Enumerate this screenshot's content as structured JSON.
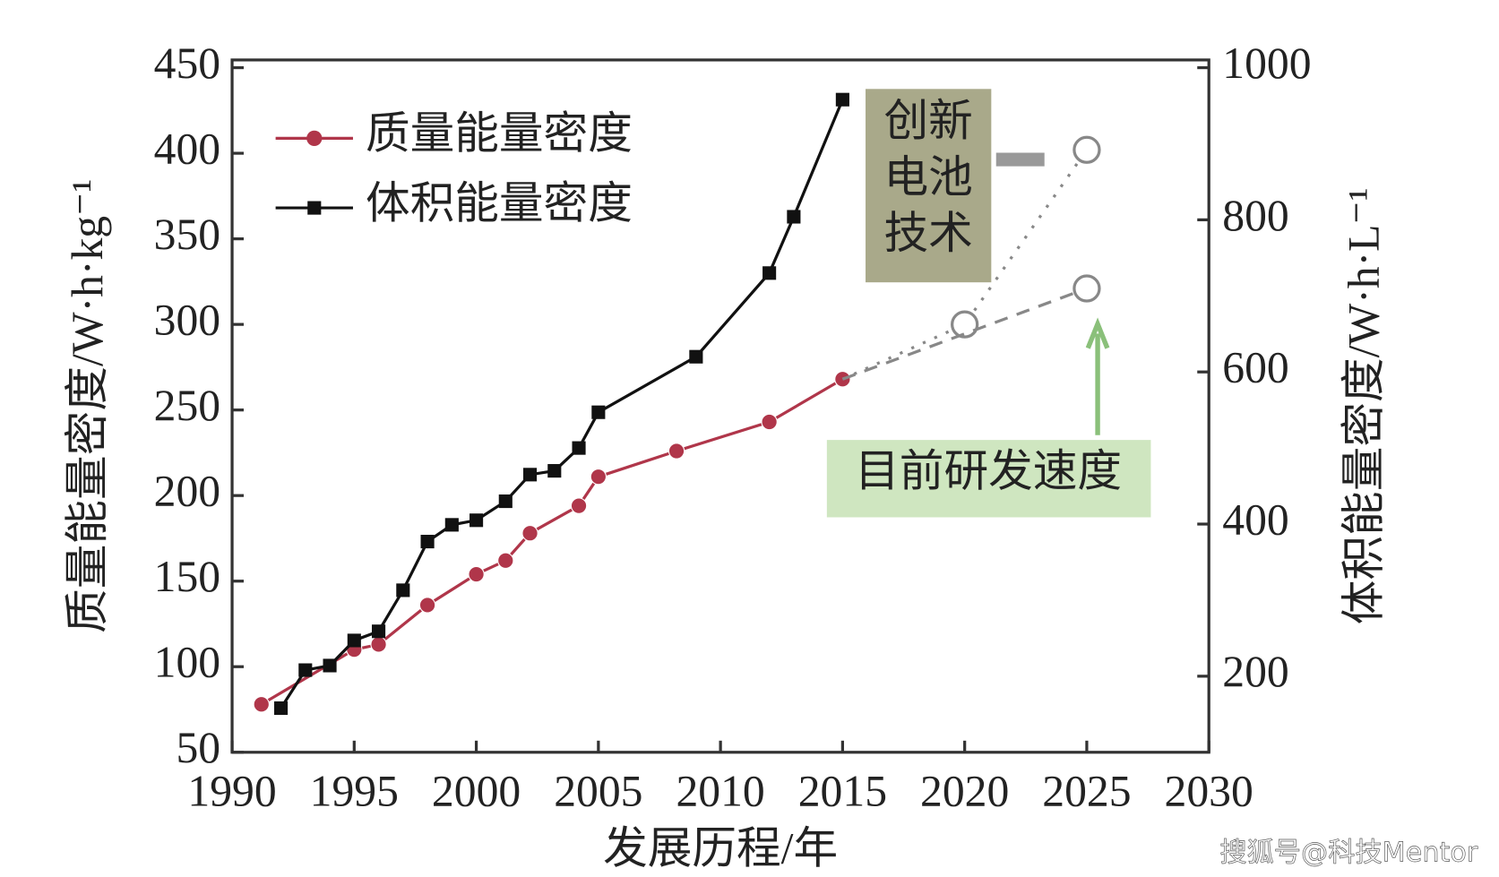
{
  "chart_data": {
    "type": "line",
    "x_label": "发展历程/年",
    "y_label": "质量能量密度/W·h·kg⁻¹",
    "y2_label": "体积能量密度/W·h·L⁻¹",
    "xlim": [
      1990,
      2030
    ],
    "xticks": [
      1990,
      1995,
      2000,
      2005,
      2010,
      2015,
      2020,
      2025,
      2030
    ],
    "ylim": [
      50,
      450
    ],
    "yticks": [
      50,
      100,
      150,
      200,
      250,
      300,
      350,
      400,
      450
    ],
    "y2lim": [
      100,
      1000
    ],
    "y2ticks": [
      200,
      400,
      600,
      800,
      1000
    ],
    "legend": "upper left",
    "series": [
      {
        "name": "质量能量密度",
        "color": "#b0364a",
        "marker": "circle",
        "x": [
          1991.2,
          1995,
          1996,
          1998,
          2000,
          2001.2,
          2002.2,
          2004.2,
          2005,
          2008.2,
          2012,
          2015
        ],
        "values": [
          78,
          110,
          113,
          136,
          154,
          162,
          178,
          194,
          211,
          226,
          243,
          268
        ]
      },
      {
        "name": "体积能量密度",
        "color": "#111111",
        "marker": "square",
        "axis": "y2",
        "x": [
          1992,
          1993,
          1994,
          1995,
          1996,
          1997,
          1998,
          1999,
          2000,
          2001.2,
          2002.2,
          2003.2,
          2004.2,
          2005,
          2009,
          2012,
          2013,
          2015
        ],
        "values": [
          158,
          208,
          214,
          247,
          259,
          313,
          377,
          399,
          405,
          430,
          465,
          470,
          500,
          547,
          620,
          730,
          804,
          958
        ]
      },
      {
        "color": "#888888",
        "marker": "open-circle",
        "dash": "dotted",
        "x": [
          2015,
          2020,
          2025
        ],
        "values": [
          268,
          300,
          402
        ]
      },
      {
        "color": "#888888",
        "marker": "open-circle",
        "dash": "dashed",
        "x": [
          2015,
          2025
        ],
        "values": [
          268,
          321
        ]
      }
    ],
    "annotations": [
      "创新",
      "电池",
      "技术",
      "目前研发速度"
    ],
    "watermark": "搜狐号@科技Mentor"
  }
}
